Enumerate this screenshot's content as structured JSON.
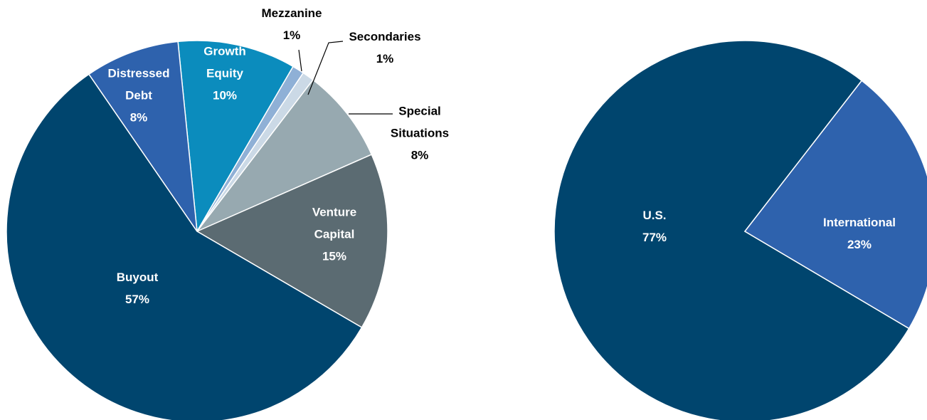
{
  "chart_data": [
    {
      "type": "pie",
      "categories": [
        "Growth Equity",
        "Mezzanine",
        "Secondaries",
        "Special Situations",
        "Venture Capital",
        "Buyout",
        "Distressed Debt"
      ],
      "values": [
        10,
        1,
        1,
        8,
        15,
        57,
        8
      ],
      "value_labels": [
        "10%",
        "1%",
        "1%",
        "8%",
        "15%",
        "57%",
        "8%"
      ],
      "colors": [
        "#0b8cbd",
        "#8fb0d6",
        "#cbd9e6",
        "#97a9b0",
        "#5b6b72",
        "#00456e",
        "#2e62ad"
      ]
    },
    {
      "type": "pie",
      "categories": [
        "U.S.",
        "International"
      ],
      "values": [
        77,
        23
      ],
      "value_labels": [
        "77%",
        "23%"
      ],
      "colors": [
        "#00456e",
        "#2e62ad"
      ]
    }
  ]
}
